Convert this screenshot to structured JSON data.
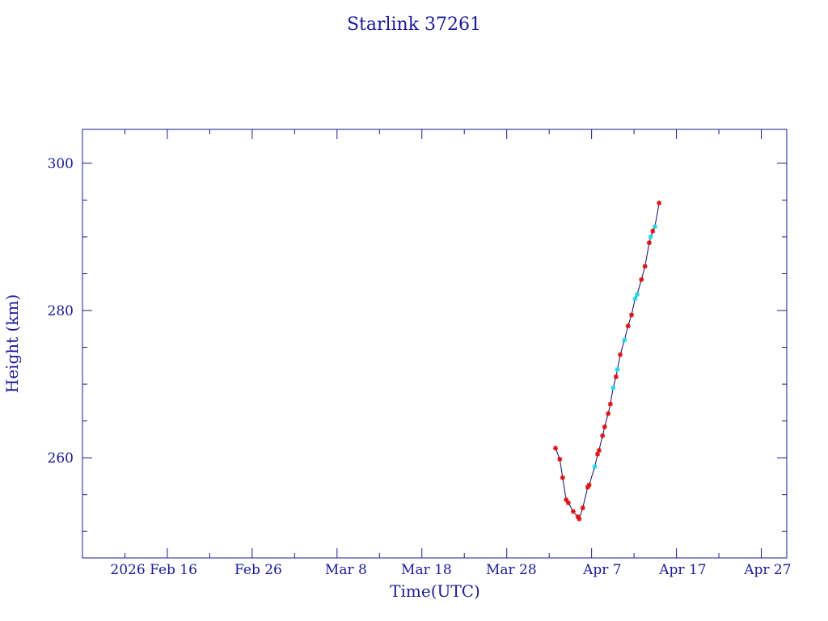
{
  "colors": {
    "text": "#1a1a99",
    "axis": "#1a1a99",
    "line": "#0b0b6e",
    "marker_red": "#e01010",
    "marker_cyan": "#22d8e8"
  },
  "chart_data": {
    "type": "line",
    "title": "Starlink 37261",
    "xlabel": "Time(UTC)",
    "ylabel": "Height (km)",
    "x_unit": "date",
    "x_tick_labels": [
      "2026 Feb 16",
      "Feb 26",
      "Mar  8",
      "Mar 18",
      "Mar 28",
      "Apr  7",
      "Apr 17",
      "Apr 27"
    ],
    "y_tick_labels": [
      "260",
      "280",
      "300"
    ],
    "ylim": [
      246.4,
      304.6
    ],
    "xlim": [
      "2026-02-06T00:00",
      "2026-04-30T00:00"
    ],
    "grid": false,
    "series": [
      {
        "marker": "asterisk",
        "points": [
          {
            "x": "2026-04-02T18:00",
            "y": 261.3,
            "c": "red"
          },
          {
            "x": "2026-04-03T06:00",
            "y": 259.8,
            "c": "red"
          },
          {
            "x": "2026-04-03T14:00",
            "y": 257.3,
            "c": "red"
          },
          {
            "x": "2026-04-04T00:00",
            "y": 254.3,
            "c": "red"
          },
          {
            "x": "2026-04-04T06:00",
            "y": 253.9,
            "c": "red"
          },
          {
            "x": "2026-04-04T20:00",
            "y": 252.7,
            "c": "red"
          },
          {
            "x": "2026-04-05T09:00",
            "y": 252.0,
            "c": "red"
          },
          {
            "x": "2026-04-05T13:00",
            "y": 251.7,
            "c": "red"
          },
          {
            "x": "2026-04-05T23:00",
            "y": 253.2,
            "c": "red"
          },
          {
            "x": "2026-04-06T13:00",
            "y": 256.0,
            "c": "red"
          },
          {
            "x": "2026-04-06T17:00",
            "y": 256.3,
            "c": "red"
          },
          {
            "x": "2026-04-07T09:00",
            "y": 258.8,
            "c": "cyan"
          },
          {
            "x": "2026-04-07T17:00",
            "y": 260.5,
            "c": "red"
          },
          {
            "x": "2026-04-07T21:00",
            "y": 261.0,
            "c": "red"
          },
          {
            "x": "2026-04-08T07:00",
            "y": 263.0,
            "c": "red"
          },
          {
            "x": "2026-04-08T13:00",
            "y": 264.2,
            "c": "red"
          },
          {
            "x": "2026-04-08T23:00",
            "y": 266.0,
            "c": "red"
          },
          {
            "x": "2026-04-09T05:00",
            "y": 267.3,
            "c": "red"
          },
          {
            "x": "2026-04-09T13:00",
            "y": 269.5,
            "c": "cyan"
          },
          {
            "x": "2026-04-09T21:00",
            "y": 271.0,
            "c": "red"
          },
          {
            "x": "2026-04-10T01:00",
            "y": 272.0,
            "c": "cyan"
          },
          {
            "x": "2026-04-10T09:00",
            "y": 274.0,
            "c": "red"
          },
          {
            "x": "2026-04-10T21:00",
            "y": 276.0,
            "c": "cyan"
          },
          {
            "x": "2026-04-11T07:00",
            "y": 277.9,
            "c": "red"
          },
          {
            "x": "2026-04-11T17:00",
            "y": 279.4,
            "c": "red"
          },
          {
            "x": "2026-04-12T03:00",
            "y": 281.6,
            "c": "cyan"
          },
          {
            "x": "2026-04-12T09:00",
            "y": 282.2,
            "c": "cyan"
          },
          {
            "x": "2026-04-12T21:00",
            "y": 284.2,
            "c": "red"
          },
          {
            "x": "2026-04-13T07:00",
            "y": 286.0,
            "c": "red"
          },
          {
            "x": "2026-04-13T19:00",
            "y": 289.2,
            "c": "red"
          },
          {
            "x": "2026-04-13T23:00",
            "y": 290.0,
            "c": "cyan"
          },
          {
            "x": "2026-04-14T05:00",
            "y": 290.8,
            "c": "red"
          },
          {
            "x": "2026-04-14T11:00",
            "y": 291.4,
            "c": "cyan"
          },
          {
            "x": "2026-04-14T23:00",
            "y": 294.6,
            "c": "red"
          }
        ]
      }
    ]
  }
}
